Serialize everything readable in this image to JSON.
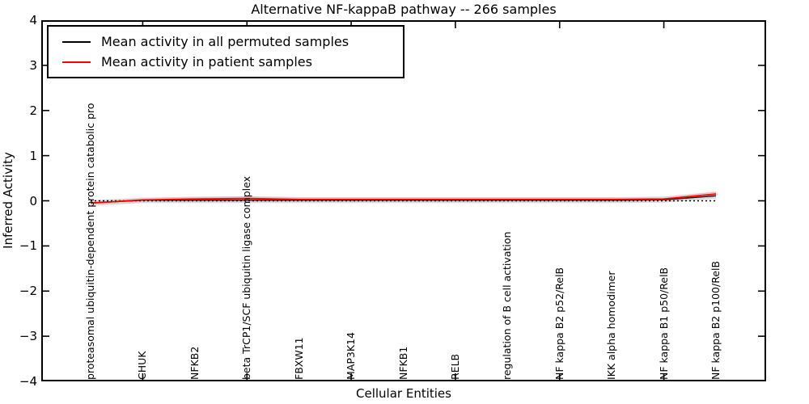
{
  "chart_data": {
    "type": "line",
    "title": "Alternative NF-kappaB pathway -- 266 samples",
    "xlabel": "Cellular Entities",
    "ylabel": "Inferred Activity",
    "ylim": [
      -4,
      4
    ],
    "ytick_labels": [
      "4",
      "3",
      "2",
      "1",
      "0",
      "−1",
      "−2",
      "−3",
      "−4"
    ],
    "grid": false,
    "legend_position": "upper left",
    "categories": [
      "proteasomal ubiquitin-dependent protein catabolic pro",
      "CHUK",
      "NFKB2",
      "beta TrCP1/SCF ubiquitin ligase complex",
      "FBXW11",
      "MAP3K14",
      "NFKB1",
      "RELB",
      "regulation of B cell activation",
      "NF kappa B2 p52/RelB",
      "IKK alpha homodimer",
      "NF kappa B1 p50/RelB",
      "NF kappa B2 p100/RelB"
    ],
    "series": [
      {
        "name": "Mean activity in all permuted samples",
        "color": "#000000",
        "style": "solid",
        "values": [
          -0.05,
          0.01,
          0.01,
          0.01,
          0.01,
          0.01,
          0.01,
          0.01,
          0.01,
          0.01,
          0.01,
          0.02,
          0.11
        ]
      },
      {
        "name": "Mean activity in patient samples",
        "color": "#ff0000",
        "style": "solid",
        "values": [
          -0.05,
          0.02,
          0.04,
          0.05,
          0.03,
          0.03,
          0.03,
          0.03,
          0.03,
          0.03,
          0.03,
          0.04,
          0.15
        ]
      }
    ],
    "uncertainty_bands": [
      {
        "around_series": 0,
        "halfwidth": 0.06,
        "color": "#d8d8d8"
      },
      {
        "around_series": 1,
        "halfwidth": 0.05,
        "color": "#f6baba"
      }
    ],
    "zero_line": {
      "y": 0,
      "style": "dotted",
      "color": "#000000"
    },
    "x_tick_marks_at_indices": [
      1,
      3,
      5,
      7,
      9,
      11
    ]
  }
}
